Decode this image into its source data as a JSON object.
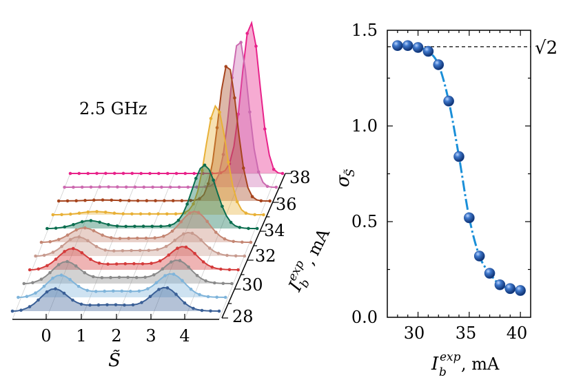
{
  "chart_data": [
    {
      "type": "area",
      "variant": "waterfall-3d",
      "annotation": "2.5 GHz",
      "xlabel": "S̃",
      "xticks": [
        "0",
        "1",
        "2",
        "3",
        "4"
      ],
      "zlabel": "I_b^exp, mA",
      "zlabel_main": "I",
      "zlabel_sub": "b",
      "zlabel_sup": "exp",
      "zlabel_unit": ", mA",
      "zticks": [
        "28",
        "30",
        "32",
        "34",
        "36",
        "38"
      ],
      "currents_mA": [
        28,
        29,
        30,
        31,
        32,
        33,
        34,
        35,
        36,
        37,
        38
      ],
      "series_colors": [
        "#3a5f96",
        "#7fb4da",
        "#8a8a8a",
        "#d43b3b",
        "#c79a8e",
        "#c48673",
        "#0b6e4f",
        "#e8b036",
        "#a6441d",
        "#cc6ab0",
        "#e8228a"
      ]
    },
    {
      "type": "line",
      "xlabel": "I_b^exp, mA",
      "xlabel_main": "I",
      "xlabel_sub": "b",
      "xlabel_sup": "exp",
      "xlabel_unit": ", mA",
      "ylabel": "σ_S̃",
      "ylabel_main": "σ",
      "ylabel_sub": "S̃",
      "x": [
        28,
        29,
        30,
        31,
        32,
        33,
        34,
        35,
        36,
        37,
        38,
        39,
        40
      ],
      "y": [
        1.42,
        1.42,
        1.41,
        1.39,
        1.32,
        1.13,
        0.84,
        0.52,
        0.32,
        0.23,
        0.17,
        0.15,
        0.14
      ],
      "xlim": [
        27,
        41
      ],
      "ylim": [
        0,
        1.5
      ],
      "xticks": [
        "30",
        "35",
        "40"
      ],
      "yticks": [
        "0.0",
        "0.5",
        "1.0",
        "1.5"
      ],
      "reference_line": {
        "value": 1.414,
        "label": "√2"
      },
      "marker_color": "#1f4f9c",
      "line_color": "#1a8fd8"
    }
  ]
}
